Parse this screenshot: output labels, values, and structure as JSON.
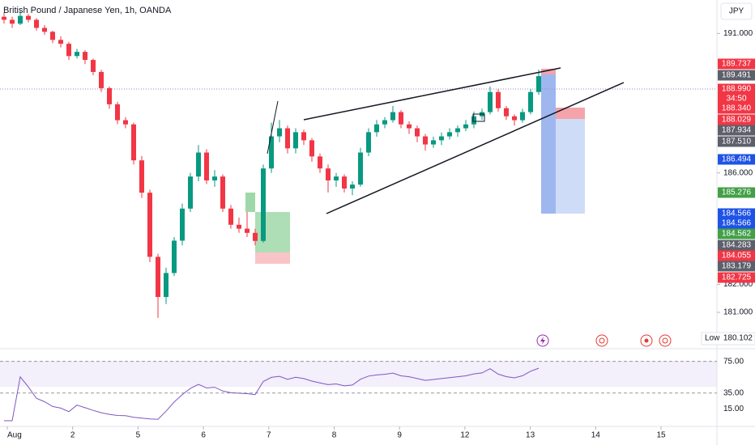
{
  "chart_data": {
    "type": "candlestick",
    "title": "British Pound / Japanese Yen, 1h, OANDA",
    "currency": "JPY",
    "up_color": "#089981",
    "down_color": "#f23645",
    "ylim": [
      180,
      192.2
    ],
    "yticks": [
      {
        "value": 191,
        "label": "191.000"
      },
      {
        "value": 186,
        "label": "186.000"
      },
      {
        "value": 182,
        "label": "182.000"
      },
      {
        "value": 181,
        "label": "181.000"
      }
    ],
    "xlim": [
      0,
      10.6
    ],
    "xticks": [
      {
        "value": 0,
        "label": "Aug"
      },
      {
        "value": 1,
        "label": "2"
      },
      {
        "value": 2,
        "label": "5"
      },
      {
        "value": 3,
        "label": "6"
      },
      {
        "value": 4,
        "label": "7"
      },
      {
        "value": 5,
        "label": "8"
      },
      {
        "value": 6,
        "label": "9"
      },
      {
        "value": 7,
        "label": "12"
      },
      {
        "value": 8,
        "label": "13"
      },
      {
        "value": 9,
        "label": "14"
      },
      {
        "value": 10,
        "label": "15"
      }
    ],
    "candles": [
      [
        191.6,
        191.75,
        191.35,
        191.49
      ],
      [
        191.49,
        191.6,
        191.2,
        191.35
      ],
      [
        191.35,
        191.8,
        191.3,
        191.63
      ],
      [
        191.63,
        191.7,
        191.4,
        191.49
      ],
      [
        191.49,
        191.55,
        191.1,
        191.2
      ],
      [
        191.2,
        191.3,
        190.95,
        191.06
      ],
      [
        191.06,
        191.1,
        190.65,
        190.77
      ],
      [
        190.77,
        190.9,
        190.5,
        190.63
      ],
      [
        190.63,
        190.7,
        190.05,
        190.19
      ],
      [
        190.19,
        190.45,
        190.1,
        190.34
      ],
      [
        190.34,
        190.4,
        189.9,
        190.05
      ],
      [
        190.05,
        190.1,
        189.5,
        189.62
      ],
      [
        189.62,
        189.7,
        188.9,
        189.04
      ],
      [
        189.04,
        189.1,
        188.3,
        188.46
      ],
      [
        188.46,
        188.55,
        187.75,
        187.89
      ],
      [
        187.89,
        188.0,
        187.6,
        187.74
      ],
      [
        187.74,
        187.8,
        186.3,
        186.45
      ],
      [
        186.45,
        186.6,
        185.1,
        185.29
      ],
      [
        185.29,
        185.4,
        182.8,
        182.99
      ],
      [
        182.99,
        183.1,
        180.8,
        181.55
      ],
      [
        181.55,
        182.6,
        181.3,
        182.41
      ],
      [
        182.41,
        183.7,
        182.3,
        183.57
      ],
      [
        183.57,
        184.9,
        183.4,
        184.72
      ],
      [
        184.72,
        186.0,
        184.6,
        185.87
      ],
      [
        185.87,
        187.0,
        185.7,
        186.73
      ],
      [
        186.73,
        186.85,
        185.6,
        185.73
      ],
      [
        185.73,
        186.1,
        185.5,
        185.87
      ],
      [
        185.87,
        185.95,
        184.6,
        184.72
      ],
      [
        184.72,
        184.85,
        184.0,
        184.14
      ],
      [
        184.14,
        184.4,
        183.85,
        184.0
      ],
      [
        184.0,
        184.6,
        183.7,
        183.85
      ],
      [
        183.85,
        184.0,
        183.4,
        183.56
      ],
      [
        183.56,
        186.3,
        183.5,
        186.16
      ],
      [
        186.16,
        187.8,
        186.0,
        187.31
      ],
      [
        187.31,
        187.9,
        187.1,
        187.6
      ],
      [
        187.6,
        187.7,
        186.7,
        186.88
      ],
      [
        186.88,
        187.6,
        186.7,
        187.46
      ],
      [
        187.46,
        187.55,
        187.0,
        187.17
      ],
      [
        187.17,
        187.25,
        186.4,
        186.59
      ],
      [
        186.59,
        186.7,
        186.0,
        186.16
      ],
      [
        186.16,
        186.3,
        185.3,
        185.73
      ],
      [
        185.73,
        186.0,
        185.5,
        185.87
      ],
      [
        185.87,
        185.95,
        185.3,
        185.44
      ],
      [
        185.44,
        185.7,
        185.2,
        185.58
      ],
      [
        185.58,
        186.9,
        185.5,
        186.73
      ],
      [
        186.73,
        187.6,
        186.6,
        187.46
      ],
      [
        187.46,
        187.9,
        187.3,
        187.74
      ],
      [
        187.74,
        188.0,
        187.6,
        187.89
      ],
      [
        187.89,
        188.4,
        187.8,
        188.18
      ],
      [
        188.18,
        188.25,
        187.6,
        187.74
      ],
      [
        187.74,
        187.85,
        187.4,
        187.6
      ],
      [
        187.6,
        187.7,
        187.1,
        187.31
      ],
      [
        187.31,
        187.4,
        186.8,
        187.02
      ],
      [
        187.02,
        187.3,
        186.9,
        187.17
      ],
      [
        187.17,
        187.45,
        187.0,
        187.31
      ],
      [
        187.31,
        187.6,
        187.2,
        187.46
      ],
      [
        187.46,
        187.7,
        187.3,
        187.6
      ],
      [
        187.6,
        187.9,
        187.5,
        187.74
      ],
      [
        187.74,
        188.2,
        187.6,
        188.03
      ],
      [
        188.03,
        188.3,
        187.9,
        188.18
      ],
      [
        188.18,
        189.1,
        188.1,
        188.9
      ],
      [
        188.9,
        189.0,
        188.2,
        188.32
      ],
      [
        188.32,
        188.4,
        187.9,
        188.03
      ],
      [
        188.03,
        188.1,
        187.7,
        187.89
      ],
      [
        187.89,
        188.3,
        187.8,
        188.18
      ],
      [
        188.18,
        189.0,
        188.1,
        188.9
      ],
      [
        188.9,
        189.7,
        188.8,
        189.47
      ]
    ],
    "price_labels": [
      {
        "text": "189.737",
        "color": "#f23645"
      },
      {
        "text": "189.491",
        "color": "#5d606b"
      },
      {
        "text": "188.990",
        "color": "#f23645",
        "countdown": "34:50"
      },
      {
        "text": "188.340",
        "color": "#f23645"
      },
      {
        "text": "188.029",
        "color": "#f23645"
      },
      {
        "text": "187.934",
        "color": "#5d606b"
      },
      {
        "text": "187.510",
        "color": "#5d606b"
      },
      {
        "text": "186.494",
        "color": "#1e53e5"
      },
      {
        "text": "185.276",
        "color": "#43a047"
      },
      {
        "text": "184.566",
        "color": "#1e53e5"
      },
      {
        "text": "184.566",
        "color": "#1e53e5"
      },
      {
        "text": "184.562",
        "color": "#43a047"
      },
      {
        "text": "184.283",
        "color": "#5d606b"
      },
      {
        "text": "184.055",
        "color": "#f23645"
      },
      {
        "text": "183.179",
        "color": "#5d606b"
      },
      {
        "text": "182.725",
        "color": "#f23645"
      }
    ],
    "low_label": "Low",
    "low_value": {
      "value": 180.102,
      "label": "180.102"
    },
    "rsi": {
      "color": "#7e57c2",
      "ylim": [
        0,
        90
      ],
      "yticks": [
        {
          "value": 75,
          "label": "75.00"
        },
        {
          "value": 35,
          "label": "35.00"
        },
        {
          "value": 15,
          "label": "15.00"
        }
      ]
    }
  }
}
